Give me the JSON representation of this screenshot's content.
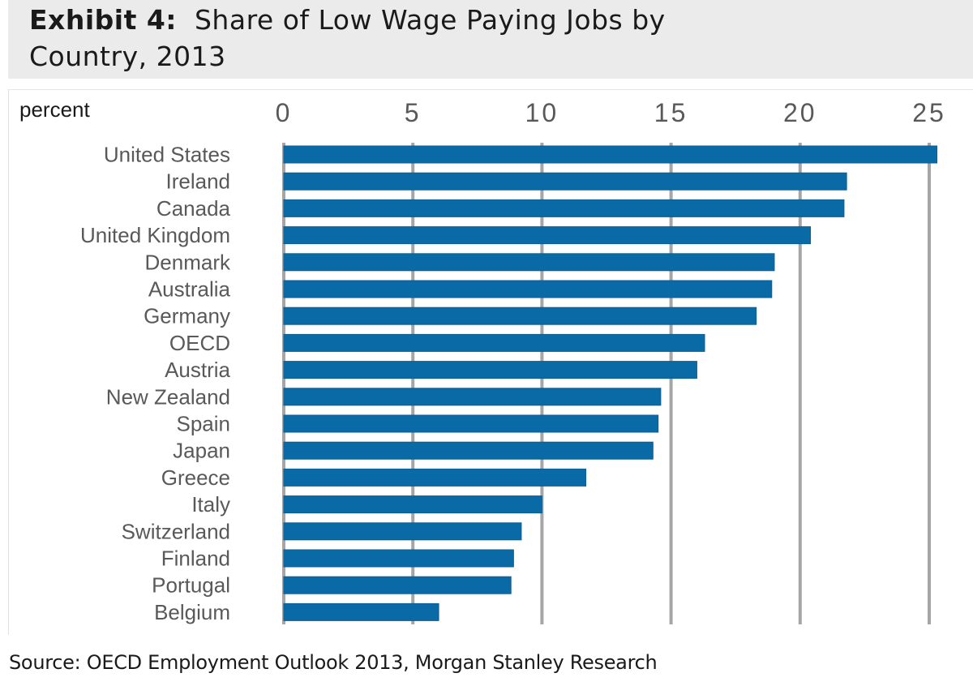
{
  "header": {
    "title_bold": "Exhibit 4:",
    "title_rest": "Share of Low Wage Paying Jobs by",
    "title_line2": "Country, 2013"
  },
  "footer": {
    "source": "Source: OECD Employment Outlook 2013, Morgan Stanley Research"
  },
  "colors": {
    "bar": "#0a6aa6",
    "grid": "#a6a6a6",
    "title_band": "#ebebeb"
  },
  "chart_data": {
    "type": "bar",
    "orientation": "horizontal",
    "title": "Exhibit 4: Share of Low Wage Paying Jobs by Country, 2013",
    "xlabel": "percent",
    "ylabel": "",
    "xlim": [
      0,
      25
    ],
    "x_ticks": [
      "0",
      "5",
      "10",
      "15",
      "20",
      "25"
    ],
    "grid": true,
    "legend": "none",
    "categories": [
      "United States",
      "Ireland",
      "Canada",
      "United Kingdom",
      "Denmark",
      "Australia",
      "Germany",
      "OECD",
      "Austria",
      "New Zealand",
      "Spain",
      "Japan",
      "Greece",
      "Italy",
      "Switzerland",
      "Finland",
      "Portugal",
      "Belgium"
    ],
    "values": [
      25.3,
      21.8,
      21.7,
      20.4,
      19.0,
      18.9,
      18.3,
      16.3,
      16.0,
      14.6,
      14.5,
      14.3,
      11.7,
      10.0,
      9.2,
      8.9,
      8.8,
      6.0
    ]
  }
}
